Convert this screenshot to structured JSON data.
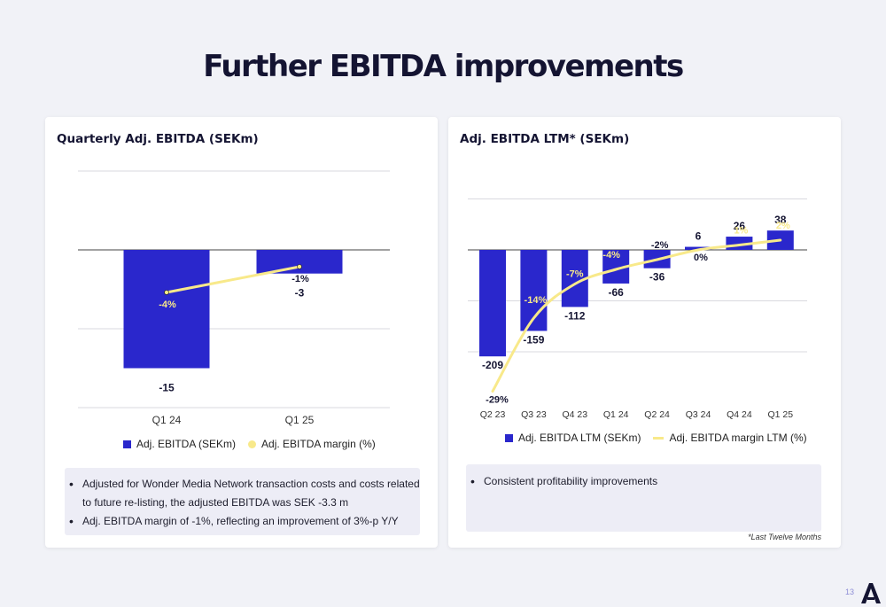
{
  "page": {
    "title": "Further EBITDA improvements",
    "page_number": "13"
  },
  "left": {
    "title": "Quarterly Adj. EBITDA (SEKm)",
    "legend_bar": "Adj. EBITDA (SEKm)",
    "legend_line": "Adj. EBITDA margin (%)",
    "bullets": [
      "Adjusted for Wonder Media Network transaction costs and costs related to future re-listing, the adjusted EBITDA was SEK -3.3 m",
      "Adj. EBITDA margin of -1%, reflecting an improvement of 3%-p  Y/Y"
    ]
  },
  "right": {
    "title": "Adj. EBITDA LTM* (SEKm)",
    "legend_bar": "Adj. EBITDA LTM (SEKm)",
    "legend_line": "Adj. EBITDA margin LTM (%)",
    "bullets": [
      "Consistent profitability improvements"
    ],
    "footnote": "*Last Twelve Months"
  },
  "colors": {
    "bar": "#2a27cc",
    "line": "#f8e98a",
    "grid": "#d9d9df",
    "zero": "#444444"
  },
  "chart_data": [
    {
      "type": "bar",
      "title": "Quarterly Adj. EBITDA (SEKm)",
      "categories": [
        "Q1 24",
        "Q1 25"
      ],
      "series": [
        {
          "name": "Adj. EBITDA (SEKm)",
          "type": "bar",
          "values": [
            -15,
            -3
          ],
          "labels": [
            "-15",
            "-3"
          ]
        },
        {
          "name": "Adj. EBITDA margin (%)",
          "type": "line",
          "values": [
            -4,
            -1
          ],
          "labels": [
            "-4%",
            "-1%"
          ]
        }
      ],
      "legend": "bottom"
    },
    {
      "type": "bar",
      "title": "Adj. EBITDA LTM* (SEKm)",
      "categories": [
        "Q2 23",
        "Q3 23",
        "Q4 23",
        "Q1 24",
        "Q2 24",
        "Q3 24",
        "Q4 24",
        "Q1 25"
      ],
      "series": [
        {
          "name": "Adj. EBITDA LTM (SEKm)",
          "type": "bar",
          "values": [
            -209,
            -159,
            -112,
            -66,
            -36,
            6,
            26,
            38
          ],
          "labels": [
            "-209",
            "-159",
            "-112",
            "-66",
            "-36",
            "6",
            "26",
            "38"
          ]
        },
        {
          "name": "Adj. EBITDA margin LTM (%)",
          "type": "line",
          "values": [
            -29,
            -14,
            -7,
            -4,
            -2,
            0,
            1,
            2
          ],
          "labels": [
            "-29%",
            "-14%",
            "-7%",
            "-4%",
            "-2%",
            "0%",
            "1%",
            "2%"
          ]
        }
      ],
      "legend": "bottom"
    }
  ]
}
